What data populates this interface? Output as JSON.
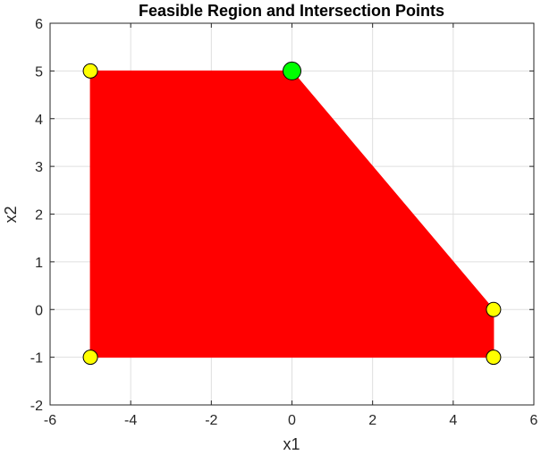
{
  "chart_data": {
    "type": "scatter",
    "title": "Feasible Region and Intersection Points",
    "xlabel": "x1",
    "ylabel": "x2",
    "xlim": [
      -6,
      6
    ],
    "ylim": [
      -2,
      6
    ],
    "xticks": [
      -6,
      -4,
      -2,
      0,
      2,
      4,
      6
    ],
    "yticks": [
      -2,
      -1,
      0,
      1,
      2,
      3,
      4,
      5,
      6
    ],
    "grid": true,
    "legend": "none",
    "feasible_region": {
      "color": "#ff0000",
      "vertices": [
        [
          -5,
          -1
        ],
        [
          -5,
          5
        ],
        [
          0,
          5
        ],
        [
          5,
          0
        ],
        [
          5,
          -1
        ]
      ]
    },
    "intersection_points": {
      "color": "#ffff00",
      "points": [
        [
          -5,
          5
        ],
        [
          -5,
          -1
        ],
        [
          5,
          0
        ],
        [
          5,
          -1
        ]
      ]
    },
    "optimal_point": {
      "color": "#00ff00",
      "point": [
        0,
        5
      ]
    }
  }
}
